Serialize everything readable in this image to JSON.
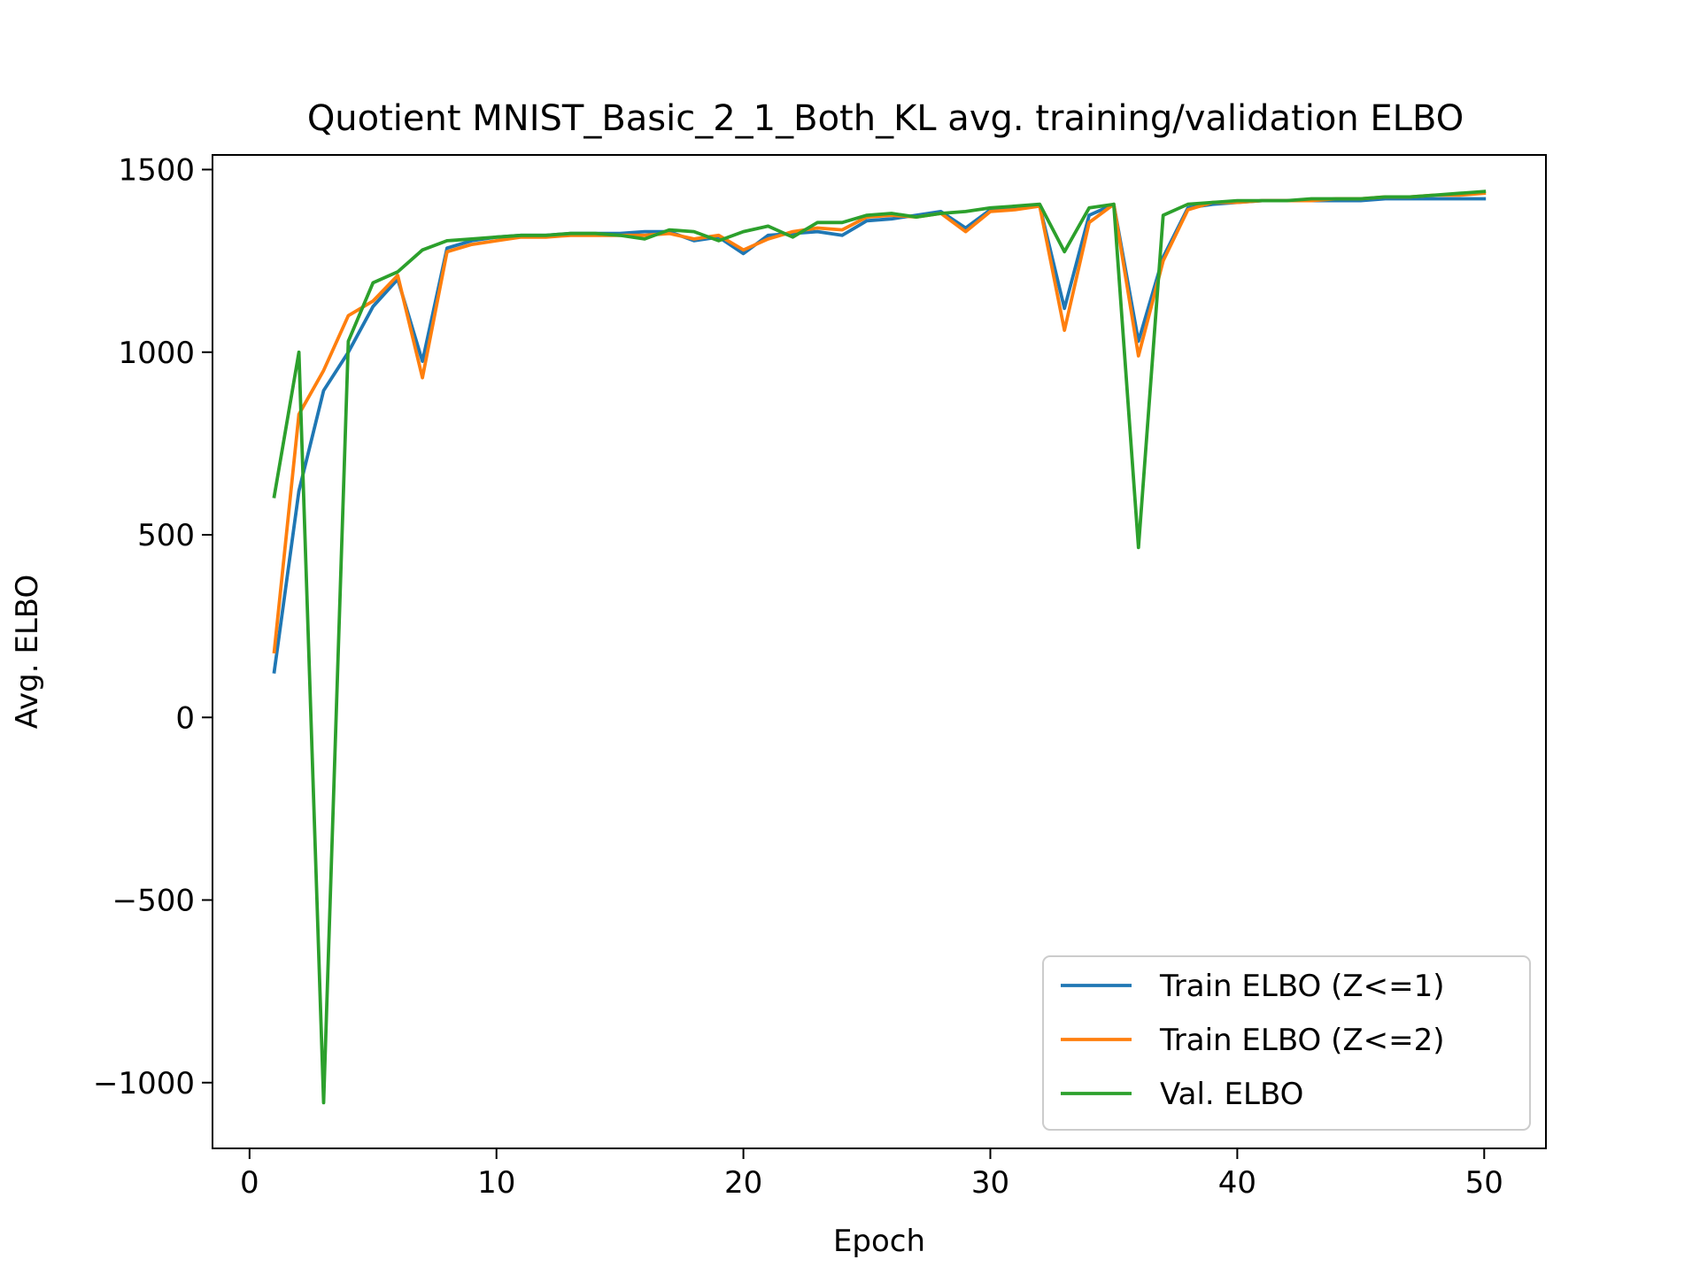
{
  "chart_data": {
    "type": "line",
    "title": "Quotient MNIST_Basic_2_1_Both_KL avg. training/validation ELBO",
    "xlabel": "Epoch",
    "ylabel": "Avg. ELBO",
    "xlim": [
      -1.5,
      52.5
    ],
    "ylim": [
      -1180,
      1540
    ],
    "xticks": [
      0,
      10,
      20,
      30,
      40,
      50
    ],
    "yticks": [
      -1000,
      -500,
      0,
      500,
      1000,
      1500
    ],
    "xtick_labels": [
      "0",
      "10",
      "20",
      "30",
      "40",
      "50"
    ],
    "ytick_labels": [
      "−1000",
      "−500",
      "0",
      "500",
      "1000",
      "1500"
    ],
    "grid": false,
    "legend_position": "lower-right",
    "x": [
      1,
      2,
      3,
      4,
      5,
      6,
      7,
      8,
      9,
      10,
      11,
      12,
      13,
      14,
      15,
      16,
      17,
      18,
      19,
      20,
      21,
      22,
      23,
      24,
      25,
      26,
      27,
      28,
      29,
      30,
      31,
      32,
      33,
      34,
      35,
      36,
      37,
      38,
      39,
      40,
      41,
      42,
      43,
      44,
      45,
      46,
      47,
      48,
      49,
      50
    ],
    "series": [
      {
        "name": "Train ELBO (Z<=1)",
        "color": "#1f77b4",
        "values": [
          125,
          620,
          895,
          1000,
          1125,
          1200,
          975,
          1285,
          1305,
          1315,
          1320,
          1320,
          1325,
          1325,
          1325,
          1330,
          1330,
          1305,
          1315,
          1270,
          1320,
          1325,
          1330,
          1320,
          1360,
          1365,
          1375,
          1385,
          1340,
          1390,
          1395,
          1400,
          1120,
          1375,
          1405,
          1030,
          1260,
          1395,
          1405,
          1410,
          1415,
          1415,
          1415,
          1415,
          1415,
          1420,
          1420,
          1420,
          1420,
          1420
        ]
      },
      {
        "name": "Train ELBO (Z<=2)",
        "color": "#ff7f0e",
        "values": [
          180,
          830,
          950,
          1100,
          1140,
          1210,
          930,
          1275,
          1295,
          1305,
          1315,
          1315,
          1320,
          1320,
          1320,
          1320,
          1325,
          1310,
          1320,
          1280,
          1310,
          1330,
          1340,
          1335,
          1370,
          1375,
          1370,
          1380,
          1330,
          1385,
          1390,
          1400,
          1060,
          1355,
          1405,
          990,
          1250,
          1390,
          1410,
          1410,
          1415,
          1415,
          1415,
          1420,
          1420,
          1425,
          1425,
          1430,
          1430,
          1435
        ]
      },
      {
        "name": "Val. ELBO",
        "color": "#2ca02c",
        "values": [
          605,
          1000,
          -1055,
          1030,
          1190,
          1220,
          1280,
          1305,
          1310,
          1315,
          1320,
          1320,
          1325,
          1325,
          1320,
          1310,
          1335,
          1330,
          1305,
          1330,
          1345,
          1315,
          1355,
          1355,
          1375,
          1380,
          1370,
          1380,
          1385,
          1395,
          1400,
          1405,
          1275,
          1395,
          1405,
          465,
          1375,
          1405,
          1410,
          1415,
          1415,
          1415,
          1420,
          1420,
          1420,
          1425,
          1425,
          1430,
          1435,
          1440
        ]
      }
    ]
  }
}
